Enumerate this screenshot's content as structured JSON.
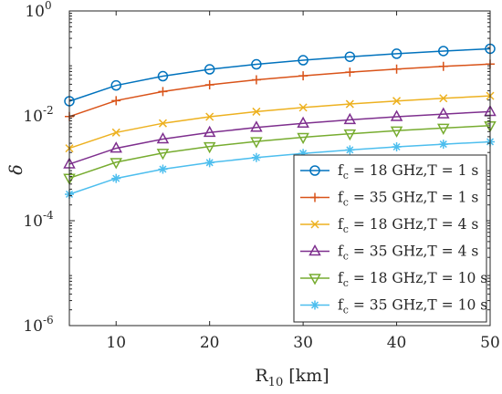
{
  "chart_data": {
    "type": "line",
    "xlabel": "R",
    "xlabel_sub": "10",
    "xlabel_unit": " [km]",
    "ylabel": "δ",
    "xlim": [
      5,
      50
    ],
    "ylim": [
      1e-06,
      1
    ],
    "yscale": "log",
    "grid": false,
    "legend_position": "bottom-right",
    "x_ticks": [
      10,
      20,
      30,
      40,
      50
    ],
    "y_ticks": [
      {
        "value": 1,
        "base": "10",
        "exp": "0"
      },
      {
        "value": 0.01,
        "base": "10",
        "exp": "-2"
      },
      {
        "value": 0.0001,
        "base": "10",
        "exp": "-4"
      },
      {
        "value": 1e-06,
        "base": "10",
        "exp": "-6"
      }
    ],
    "x": [
      5,
      10,
      15,
      20,
      25,
      30,
      35,
      40,
      45,
      50
    ],
    "series": [
      {
        "name_main": "f",
        "name_sub": "c",
        "name_rest": " = 18 GHz,T = 1 s",
        "color": "#0072BD",
        "marker": "circle",
        "values": [
          0.019,
          0.038,
          0.057,
          0.077,
          0.096,
          0.115,
          0.134,
          0.153,
          0.172,
          0.19
        ]
      },
      {
        "name_main": "f",
        "name_sub": "c",
        "name_rest": " = 35 GHz,T = 1 s",
        "color": "#D95319",
        "marker": "plus",
        "values": [
          0.0097,
          0.0195,
          0.029,
          0.039,
          0.0487,
          0.058,
          0.068,
          0.078,
          0.0876,
          0.097
        ]
      },
      {
        "name_main": "f",
        "name_sub": "c",
        "name_rest": " = 18 GHz,T = 4 s",
        "color": "#EDB120",
        "marker": "x",
        "values": [
          0.0024,
          0.0048,
          0.0072,
          0.0096,
          0.012,
          0.0144,
          0.0168,
          0.0192,
          0.0216,
          0.024
        ]
      },
      {
        "name_main": "f",
        "name_sub": "c",
        "name_rest": " = 35 GHz,T = 4 s",
        "color": "#7E2F8E",
        "marker": "triangle-up",
        "values": [
          0.0012,
          0.0024,
          0.0036,
          0.0048,
          0.006,
          0.0072,
          0.0084,
          0.0096,
          0.0108,
          0.012
        ]
      },
      {
        "name_main": "f",
        "name_sub": "c",
        "name_rest": " = 18 GHz,T = 10 s",
        "color": "#77AC30",
        "marker": "triangle-down",
        "values": [
          0.00065,
          0.0013,
          0.00195,
          0.0026,
          0.00325,
          0.0039,
          0.00455,
          0.0052,
          0.00585,
          0.0065
        ]
      },
      {
        "name_main": "f",
        "name_sub": "c",
        "name_rest": " = 35 GHz,T = 10 s",
        "color": "#4DBEEE",
        "marker": "asterisk",
        "values": [
          0.00032,
          0.00064,
          0.00096,
          0.00128,
          0.0016,
          0.00192,
          0.00224,
          0.00256,
          0.00288,
          0.0032
        ]
      }
    ]
  }
}
